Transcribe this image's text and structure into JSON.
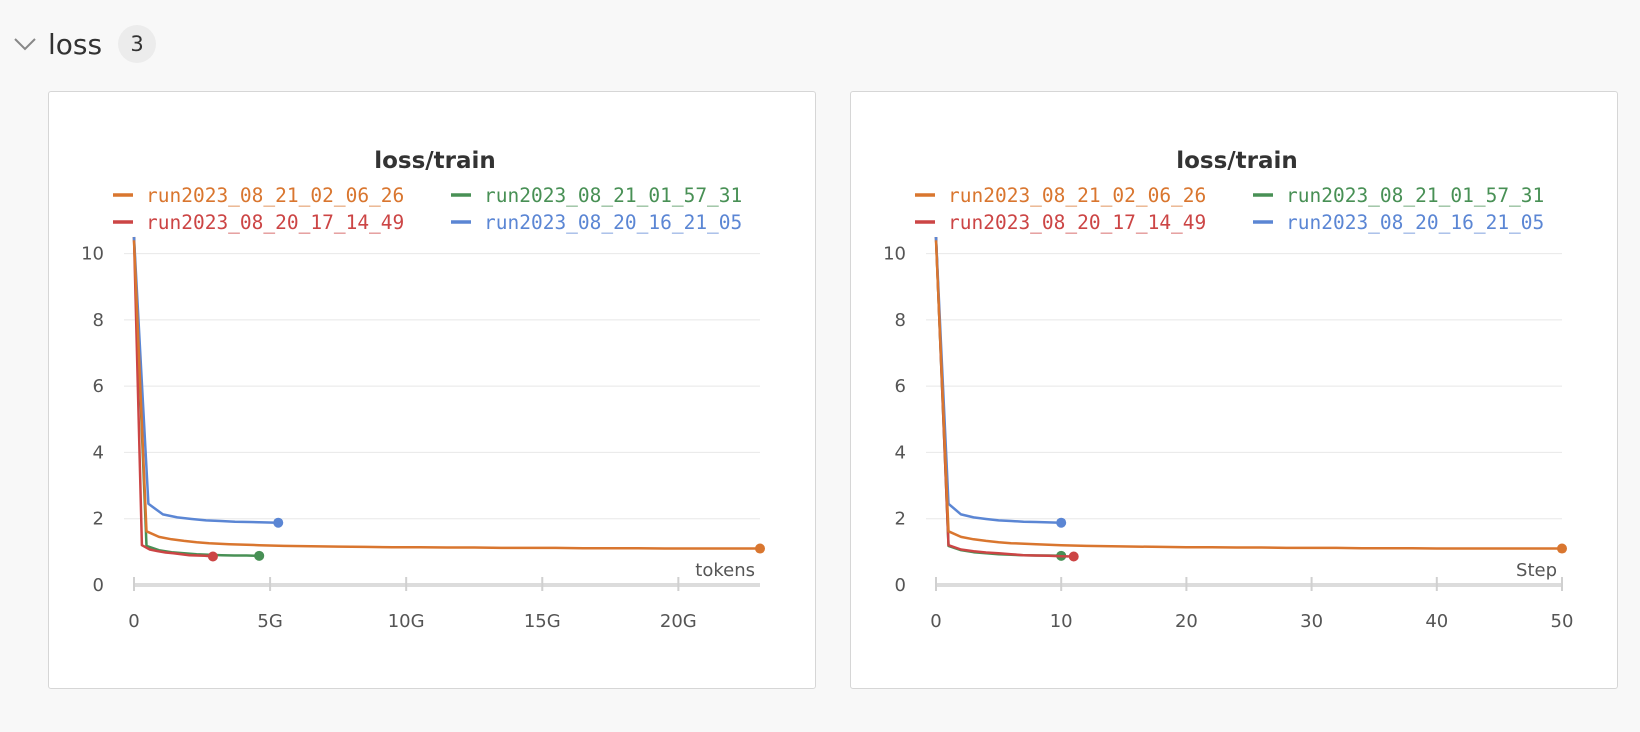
{
  "section": {
    "title": "loss",
    "count": "3"
  },
  "colors": {
    "run2023_08_21_02_06_26": "#d9762f",
    "run2023_08_21_01_57_31": "#489055",
    "run2023_08_20_17_14_49": "#cc4545",
    "run2023_08_20_16_21_05": "#5b86d4"
  },
  "chart_data": [
    {
      "type": "line",
      "title": "loss/train",
      "xlabel": "tokens",
      "ylabel": "",
      "xlim": [
        0,
        23
      ],
      "ylim": [
        0,
        10.5
      ],
      "x_units": "G",
      "xticks": [
        0,
        5,
        10,
        15,
        20
      ],
      "xtick_labels": [
        "0",
        "5G",
        "10G",
        "15G",
        "20G"
      ],
      "yticks": [
        0,
        2,
        4,
        6,
        8,
        10
      ],
      "ytick_labels": [
        "0",
        "2",
        "4",
        "6",
        "8",
        "10"
      ],
      "grid": true,
      "legend_position": "top",
      "series": [
        {
          "name": "run2023_08_21_02_06_26",
          "color": "#d9762f",
          "x": [
            0,
            0.46,
            0.92,
            1.38,
            1.84,
            2.3,
            2.76,
            3.5,
            4.6,
            5.5,
            6.5,
            7.5,
            8.5,
            9.5,
            10.5,
            11.5,
            12.5,
            13.5,
            14.5,
            15.5,
            16.5,
            17.5,
            18.5,
            19.5,
            20.5,
            21.5,
            23
          ],
          "y": [
            10.4,
            1.62,
            1.45,
            1.38,
            1.33,
            1.29,
            1.26,
            1.23,
            1.2,
            1.18,
            1.17,
            1.16,
            1.15,
            1.14,
            1.14,
            1.13,
            1.13,
            1.12,
            1.12,
            1.12,
            1.11,
            1.11,
            1.11,
            1.1,
            1.1,
            1.1,
            1.1
          ]
        },
        {
          "name": "run2023_08_20_17_14_49",
          "color": "#cc4545",
          "x": [
            0,
            0.29,
            0.58,
            0.87,
            1.16,
            1.45,
            1.74,
            2.03,
            2.32,
            2.61,
            2.9
          ],
          "y": [
            10.5,
            1.2,
            1.07,
            1.02,
            0.98,
            0.96,
            0.93,
            0.9,
            0.89,
            0.88,
            0.86
          ]
        },
        {
          "name": "run2023_08_21_01_57_31",
          "color": "#489055",
          "x": [
            0,
            0.46,
            0.92,
            1.38,
            1.84,
            2.3,
            2.76,
            3.22,
            3.68,
            4.14,
            4.6
          ],
          "y": [
            10.5,
            1.18,
            1.05,
            0.99,
            0.96,
            0.93,
            0.91,
            0.9,
            0.89,
            0.89,
            0.88
          ]
        },
        {
          "name": "run2023_08_20_16_21_05",
          "color": "#5b86d4",
          "x": [
            0,
            0.53,
            1.06,
            1.59,
            2.12,
            2.65,
            3.18,
            3.71,
            4.24,
            4.77,
            5.3
          ],
          "y": [
            10.5,
            2.45,
            2.13,
            2.04,
            1.99,
            1.95,
            1.93,
            1.91,
            1.9,
            1.89,
            1.88
          ]
        }
      ]
    },
    {
      "type": "line",
      "title": "loss/train",
      "xlabel": "Step",
      "ylabel": "",
      "xlim": [
        0,
        50
      ],
      "ylim": [
        0,
        10.5
      ],
      "x_units": "",
      "xticks": [
        0,
        10,
        20,
        30,
        40,
        50
      ],
      "xtick_labels": [
        "0",
        "10",
        "20",
        "30",
        "40",
        "50"
      ],
      "yticks": [
        0,
        2,
        4,
        6,
        8,
        10
      ],
      "ytick_labels": [
        "0",
        "2",
        "4",
        "6",
        "8",
        "10"
      ],
      "grid": true,
      "legend_position": "top",
      "series": [
        {
          "name": "run2023_08_21_02_06_26",
          "color": "#d9762f",
          "x": [
            0,
            1,
            2,
            3,
            4,
            5,
            6,
            8,
            10,
            12,
            14,
            16,
            18,
            20,
            22,
            24,
            26,
            28,
            30,
            32,
            34,
            36,
            38,
            40,
            42,
            44,
            46,
            48,
            50
          ],
          "y": [
            10.4,
            1.62,
            1.45,
            1.38,
            1.33,
            1.29,
            1.26,
            1.23,
            1.2,
            1.18,
            1.17,
            1.16,
            1.15,
            1.14,
            1.14,
            1.13,
            1.13,
            1.12,
            1.12,
            1.12,
            1.11,
            1.11,
            1.11,
            1.1,
            1.1,
            1.1,
            1.1,
            1.1,
            1.1
          ]
        },
        {
          "name": "run2023_08_20_17_14_49",
          "color": "#cc4545",
          "x": [
            0,
            1,
            2,
            3,
            4,
            5,
            6,
            7,
            8,
            9,
            10,
            11
          ],
          "y": [
            10.5,
            1.2,
            1.07,
            1.02,
            0.98,
            0.96,
            0.93,
            0.9,
            0.89,
            0.88,
            0.87,
            0.86
          ]
        },
        {
          "name": "run2023_08_21_01_57_31",
          "color": "#489055",
          "x": [
            0,
            1,
            2,
            3,
            4,
            5,
            6,
            7,
            8,
            9,
            10
          ],
          "y": [
            10.5,
            1.18,
            1.05,
            0.99,
            0.96,
            0.93,
            0.91,
            0.9,
            0.89,
            0.89,
            0.88
          ]
        },
        {
          "name": "run2023_08_20_16_21_05",
          "color": "#5b86d4",
          "x": [
            0,
            1,
            2,
            3,
            4,
            5,
            6,
            7,
            8,
            9,
            10
          ],
          "y": [
            10.5,
            2.45,
            2.13,
            2.04,
            1.99,
            1.95,
            1.93,
            1.91,
            1.9,
            1.89,
            1.88
          ]
        }
      ]
    }
  ]
}
